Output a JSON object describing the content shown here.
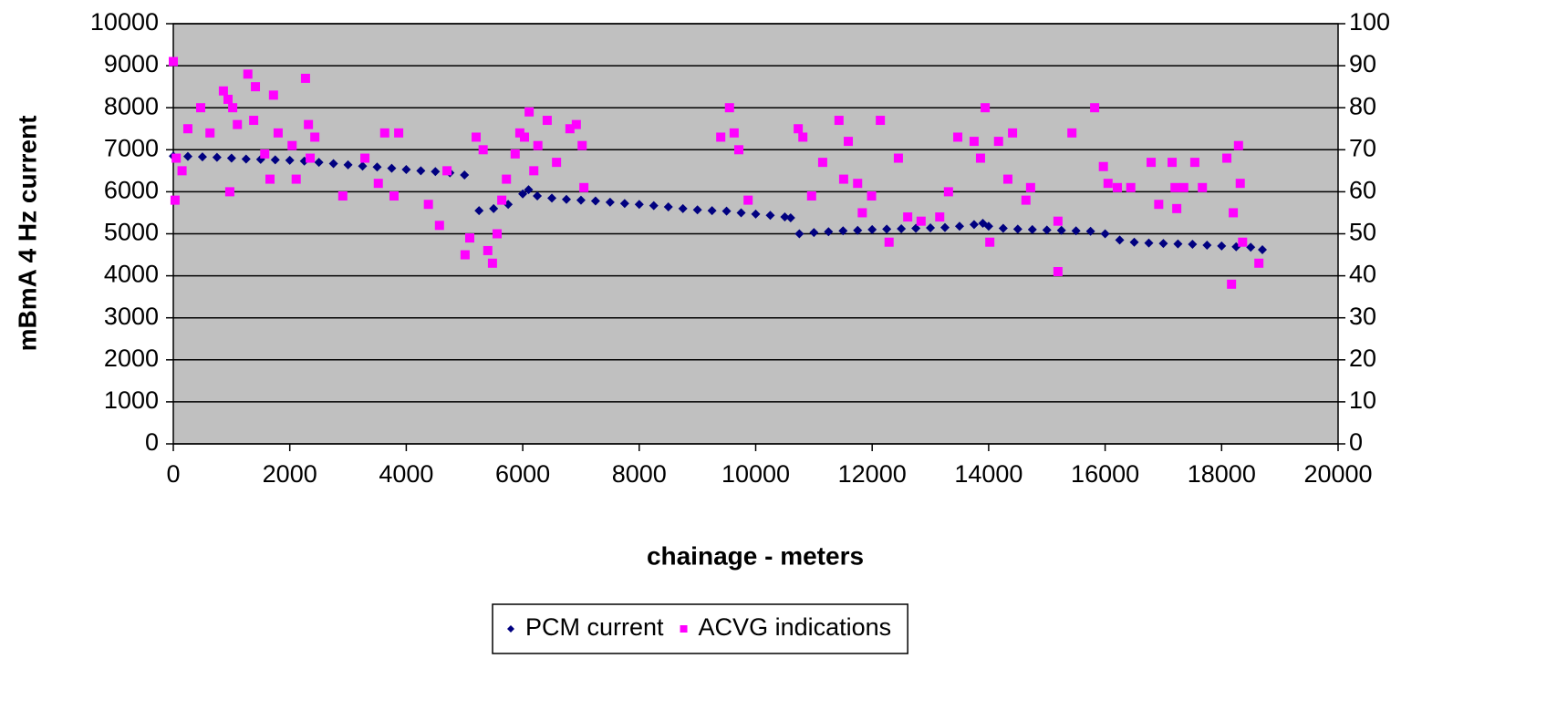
{
  "chart_data": {
    "type": "scatter",
    "x_label": "chainage - meters",
    "y_label": "mBmA 4 Hz current",
    "xlim": [
      0,
      20000
    ],
    "xticks": [
      0,
      2000,
      4000,
      6000,
      8000,
      10000,
      12000,
      14000,
      16000,
      18000,
      20000
    ],
    "ylim": [
      0,
      10000
    ],
    "yticks": [
      0,
      1000,
      2000,
      3000,
      4000,
      5000,
      6000,
      7000,
      8000,
      9000,
      10000
    ],
    "y2lim": [
      0,
      100
    ],
    "y2ticks": [
      0,
      10,
      20,
      30,
      40,
      50,
      60,
      70,
      80,
      90,
      100
    ],
    "grid": true,
    "legend": "bottom",
    "background": "#c0c0c0",
    "series": [
      {
        "name": "PCM current",
        "color": "#000080",
        "marker": "diamond",
        "x": [
          0,
          250,
          500,
          750,
          1000,
          1250,
          1500,
          1750,
          2000,
          2250,
          2500,
          2750,
          3000,
          3250,
          3500,
          3750,
          4000,
          4250,
          4500,
          4750,
          5000,
          5250,
          5500,
          5750,
          6000,
          6100,
          6250,
          6500,
          6750,
          7000,
          7250,
          7500,
          7750,
          8000,
          8250,
          8500,
          8750,
          9000,
          9250,
          9500,
          9750,
          10000,
          10250,
          10500,
          10600,
          10750,
          11000,
          11250,
          11500,
          11750,
          12000,
          12250,
          12500,
          12750,
          13000,
          13250,
          13500,
          13750,
          13900,
          14000,
          14250,
          14500,
          14750,
          15000,
          15250,
          15500,
          15750,
          16000,
          16250,
          16500,
          16750,
          17000,
          17250,
          17500,
          17750,
          18000,
          18250,
          18500,
          18700
        ],
        "values": [
          6850,
          6840,
          6830,
          6820,
          6800,
          6780,
          6770,
          6760,
          6750,
          6730,
          6700,
          6670,
          6640,
          6610,
          6590,
          6560,
          6530,
          6500,
          6480,
          6450,
          6400,
          5550,
          5600,
          5700,
          5950,
          6050,
          5900,
          5850,
          5820,
          5800,
          5780,
          5750,
          5720,
          5700,
          5670,
          5640,
          5600,
          5570,
          5550,
          5540,
          5500,
          5470,
          5440,
          5400,
          5380,
          5000,
          5030,
          5050,
          5070,
          5080,
          5100,
          5110,
          5120,
          5130,
          5140,
          5150,
          5180,
          5220,
          5250,
          5180,
          5130,
          5110,
          5100,
          5090,
          5080,
          5070,
          5060,
          5000,
          4850,
          4800,
          4780,
          4770,
          4760,
          4750,
          4730,
          4710,
          4690,
          4680,
          4620
        ]
      },
      {
        "name": "ACVG indications",
        "color": "#ff00ff",
        "marker": "square",
        "axis": "y2",
        "x": [
          0,
          50,
          30,
          150,
          250,
          470,
          860,
          940,
          1020,
          970,
          1100,
          630,
          1280,
          1410,
          1380,
          1570,
          1720,
          1800,
          1660,
          2040,
          2110,
          2270,
          2320,
          2430,
          2350,
          2910,
          3290,
          3520,
          3630,
          3870,
          3790,
          4380,
          4570,
          4700,
          5010,
          5090,
          5200,
          5320,
          5400,
          5480,
          5560,
          5640,
          5720,
          5870,
          5950,
          6030,
          6110,
          6190,
          6260,
          6420,
          6580,
          6810,
          6920,
          7020,
          7050,
          9400,
          9550,
          9630,
          9710,
          9870,
          10730,
          10810,
          10960,
          11150,
          11430,
          11510,
          11590,
          11750,
          11830,
          11990,
          12140,
          12290,
          12450,
          12610,
          12840,
          13160,
          13310,
          13470,
          13750,
          13860,
          13940,
          14020,
          14170,
          14330,
          14410,
          14640,
          14720,
          15190,
          15190,
          15430,
          15820,
          15970,
          16050,
          16210,
          16440,
          16790,
          16920,
          17150,
          17200,
          17230,
          17350,
          17540,
          17670,
          18090,
          18170,
          18200,
          18290,
          18320,
          18360,
          18640
        ],
        "values": [
          91,
          68,
          58,
          65,
          75,
          80,
          84,
          82,
          80,
          60,
          76,
          74,
          88,
          85,
          77,
          69,
          83,
          74,
          63,
          71,
          63,
          87,
          76,
          73,
          68,
          59,
          68,
          62,
          74,
          74,
          59,
          57,
          52,
          65,
          45,
          49,
          73,
          70,
          46,
          43,
          50,
          58,
          63,
          69,
          74,
          73,
          79,
          65,
          71,
          77,
          67,
          75,
          76,
          71,
          61,
          73,
          80,
          74,
          70,
          58,
          75,
          73,
          59,
          67,
          77,
          63,
          72,
          62,
          55,
          59,
          77,
          48,
          68,
          54,
          53,
          54,
          60,
          73,
          72,
          68,
          80,
          48,
          72,
          63,
          74,
          58,
          61,
          53,
          41,
          74,
          80,
          66,
          62,
          61,
          61,
          67,
          57,
          67,
          61,
          56,
          61,
          67,
          61,
          68,
          38,
          55,
          71,
          62,
          48,
          43
        ]
      }
    ]
  }
}
